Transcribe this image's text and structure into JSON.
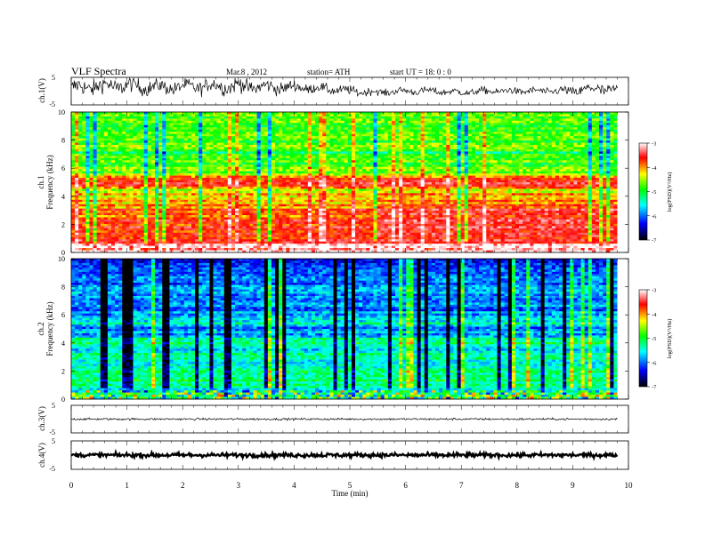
{
  "header": {
    "title": "VLF  Spectra",
    "date": "Mar.8  , 2012",
    "station": "station= ATH",
    "start_ut": "start  UT  =    18: 0  : 0"
  },
  "x_axis": {
    "label": "Time  (min)",
    "range": [
      0,
      10
    ],
    "ticks": [
      "0",
      "1",
      "2",
      "3",
      "4",
      "5",
      "6",
      "7",
      "8",
      "9",
      "10"
    ]
  },
  "panels": {
    "ch1_waveform": {
      "ylabel": "ch.1(V)",
      "yticks": [
        "5",
        "-5"
      ],
      "ylim": [
        -5,
        5
      ]
    },
    "ch1_spectrogram": {
      "ylabel_top": "ch.1",
      "ylabel": "Frequency  (kHz)",
      "yticks": [
        "0",
        "2",
        "4",
        "6",
        "8",
        "10"
      ],
      "ylim": [
        0,
        10
      ]
    },
    "ch2_spectrogram": {
      "ylabel_top": "ch.2",
      "ylabel": "Frequency  (kHz)",
      "yticks": [
        "0",
        "2",
        "4",
        "6",
        "8",
        "10"
      ],
      "ylim": [
        0,
        10
      ]
    },
    "ch3_waveform": {
      "ylabel": "ch.3(V)",
      "yticks": [
        "5",
        "-5"
      ],
      "ylim": [
        -5,
        5
      ]
    },
    "ch4_waveform": {
      "ylabel": "ch.4(V)",
      "yticks": [
        "5",
        "-5"
      ],
      "ylim": [
        -5,
        5
      ]
    }
  },
  "colorbar": {
    "label": "log(PSD)(V²/Hz)",
    "ticks": [
      "-3",
      "-4",
      "-5",
      "-6",
      "-7"
    ],
    "range": [
      -7,
      -3
    ],
    "colors": [
      "#000000",
      "#0000ff",
      "#00ffff",
      "#00ff00",
      "#ffff00",
      "#ff0000",
      "#ffffff"
    ]
  },
  "chart_data": {
    "type": "heatmap",
    "x_range_min": [
      0,
      9.8
    ],
    "ch1_waveform": {
      "x": [
        0,
        0.5,
        1,
        1.5,
        2,
        2.5,
        3,
        3.5,
        4,
        4.5,
        5,
        5.5,
        6,
        6.5,
        7,
        7.5,
        8,
        8.5,
        9,
        9.5,
        9.8
      ],
      "y": [
        1,
        2,
        2,
        1.5,
        1.5,
        2,
        2,
        1.5,
        1.5,
        1,
        0,
        -0.5,
        0,
        0,
        -0.5,
        0,
        0,
        0,
        0,
        1,
        0
      ],
      "envelope": [
        4,
        3.5,
        3.5,
        3,
        3,
        3,
        3.5,
        3,
        2.5,
        2,
        2,
        1.5,
        1.5,
        1.5,
        1.5,
        1.5,
        1.5,
        1.5,
        2,
        3,
        2
      ]
    },
    "ch1_spectrogram": {
      "freq_profile_khz": [
        0.5,
        1,
        1.5,
        2,
        2.5,
        3,
        3.5,
        4,
        4.5,
        5,
        5.5,
        6,
        6.5,
        7,
        7.5,
        8,
        8.5,
        9,
        9.5,
        10
      ],
      "log_psd_before_5_4min": [
        -3.5,
        -3.8,
        -4.0,
        -3.8,
        -4.0,
        -3.9,
        -4.3,
        -4.3,
        -4.5,
        -3.4,
        -4.6,
        -5.0,
        -4.9,
        -5.2,
        -5.0,
        -4.9,
        -5.0,
        -4.9,
        -4.8,
        -4.9
      ],
      "log_psd_after_5_4min": [
        -3.5,
        -3.7,
        -3.8,
        -3.6,
        -3.7,
        -3.6,
        -4.1,
        -4.2,
        -4.4,
        -3.3,
        -4.6,
        -5.0,
        -4.9,
        -5.2,
        -5.0,
        -4.9,
        -5.0,
        -4.9,
        -4.8,
        -4.9
      ],
      "transition_min": 5.4
    },
    "ch2_spectrogram": {
      "freq_profile_khz": [
        0.5,
        1,
        1.5,
        2,
        2.5,
        3,
        3.5,
        4,
        4.5,
        5,
        5.5,
        6,
        6.5,
        7,
        7.5,
        8,
        8.5,
        9,
        9.5,
        10
      ],
      "log_psd": [
        -6.0,
        -5.2,
        -5.5,
        -5.3,
        -5.6,
        -5.4,
        -6.0,
        -5.5,
        -5.8,
        -6.2,
        -5.6,
        -6.0,
        -6.2,
        -5.9,
        -6.1,
        -6.0,
        -6.2,
        -6.3,
        -6.4,
        -6.3
      ]
    },
    "ch3_waveform": {
      "value": 0,
      "noise": 0.2
    },
    "ch4_waveform": {
      "value": 0,
      "noise": 0.4
    }
  }
}
